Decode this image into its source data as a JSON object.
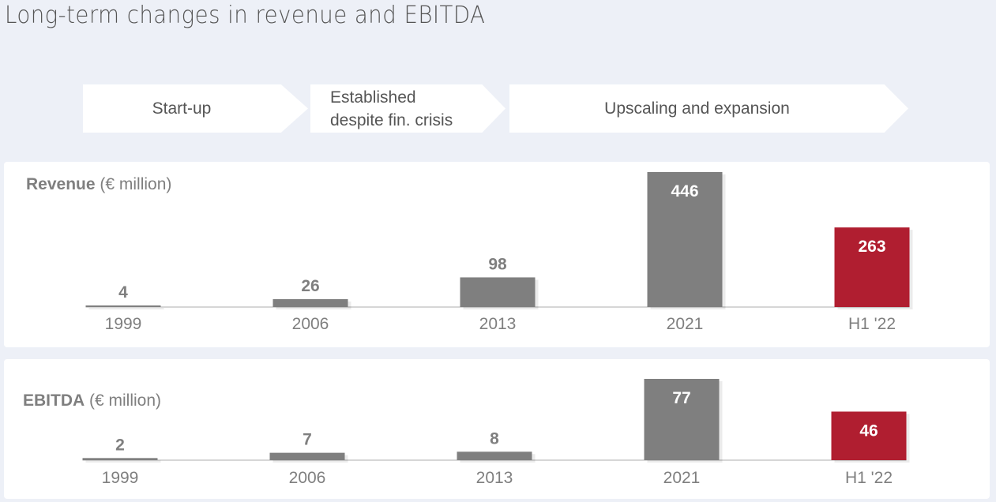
{
  "title": "Long-term changes in revenue and EBITDA",
  "phases": [
    "Start-up",
    "Established\ndespite fin. crisis",
    "Upscaling and expansion"
  ],
  "colors": {
    "bar": "#7f7f7f",
    "highlight": "#b01e30",
    "background": "#edf0f7"
  },
  "chart_data": [
    {
      "type": "bar",
      "title_bold": "Revenue",
      "title_unit": "(€ million)",
      "categories": [
        "1999",
        "2006",
        "2013",
        "2021",
        "H1 '22"
      ],
      "values": [
        4,
        26,
        98,
        446,
        263
      ],
      "highlight_index": 4
    },
    {
      "type": "bar",
      "title_bold": "EBITDA",
      "title_unit": "(€ million)",
      "categories": [
        "1999",
        "2006",
        "2013",
        "2021",
        "H1 '22"
      ],
      "values": [
        2,
        7,
        8,
        77,
        46
      ],
      "highlight_index": 4
    }
  ]
}
